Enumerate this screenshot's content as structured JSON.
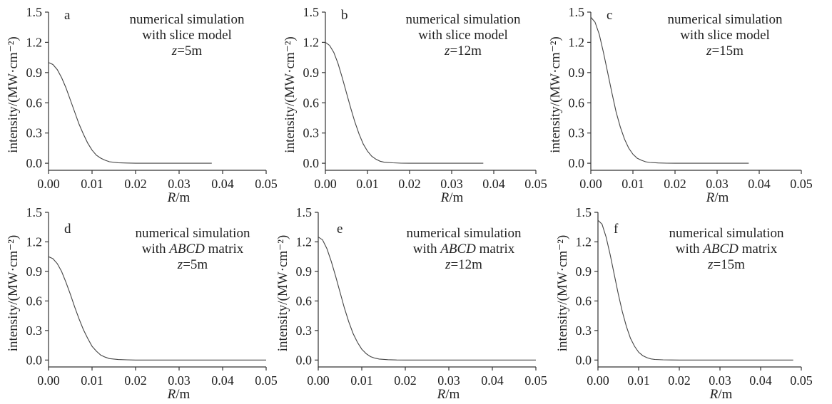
{
  "chart_data": [
    {
      "panel": "a",
      "type": "line",
      "annotation": [
        "numerical simulation",
        "with slice model",
        "z=5m"
      ],
      "xlabel": "R/m",
      "ylabel": "intensity/(MW·cm⁻²)",
      "xlim": [
        0,
        0.05
      ],
      "ylim": [
        -0.07,
        1.5
      ],
      "xticks": [
        "0.00",
        "0.01",
        "0.02",
        "0.03",
        "0.04",
        "0.05"
      ],
      "yticks": [
        "0.0",
        "0.3",
        "0.6",
        "0.9",
        "1.2",
        "1.5"
      ],
      "series": [
        {
          "x": [
            0,
            0.001,
            0.002,
            0.003,
            0.004,
            0.005,
            0.006,
            0.007,
            0.008,
            0.009,
            0.01,
            0.011,
            0.012,
            0.013,
            0.014,
            0.016,
            0.018,
            0.02,
            0.025,
            0.03,
            0.0375
          ],
          "y": [
            1.0,
            0.98,
            0.93,
            0.85,
            0.75,
            0.63,
            0.51,
            0.39,
            0.29,
            0.2,
            0.13,
            0.08,
            0.05,
            0.03,
            0.015,
            0.005,
            0.002,
            0.0,
            0.0,
            0.0,
            0.0
          ]
        }
      ]
    },
    {
      "panel": "b",
      "type": "line",
      "annotation": [
        "numerical simulation",
        "with slice model",
        "z=12m"
      ],
      "xlabel": "R/m",
      "ylabel": "intensity/(MW·cm⁻²)",
      "xlim": [
        0,
        0.05
      ],
      "ylim": [
        -0.07,
        1.5
      ],
      "xticks": [
        "0.00",
        "0.01",
        "0.02",
        "0.03",
        "0.04",
        "0.05"
      ],
      "yticks": [
        "0.0",
        "0.3",
        "0.6",
        "0.9",
        "1.2",
        "1.5"
      ],
      "series": [
        {
          "x": [
            0,
            0.001,
            0.002,
            0.003,
            0.004,
            0.005,
            0.006,
            0.007,
            0.008,
            0.009,
            0.01,
            0.011,
            0.012,
            0.013,
            0.014,
            0.016,
            0.018,
            0.02,
            0.025,
            0.03,
            0.0375
          ],
          "y": [
            1.2,
            1.17,
            1.1,
            0.99,
            0.85,
            0.7,
            0.55,
            0.41,
            0.29,
            0.19,
            0.12,
            0.07,
            0.04,
            0.02,
            0.01,
            0.004,
            0.001,
            0.0,
            0.0,
            0.0,
            0.0
          ]
        }
      ]
    },
    {
      "panel": "c",
      "type": "line",
      "annotation": [
        "numerical simulation",
        "with slice model",
        "z=15m"
      ],
      "xlabel": "R/m",
      "ylabel": "intensity/(MW·cm⁻²)",
      "xlim": [
        0,
        0.05
      ],
      "ylim": [
        -0.07,
        1.5
      ],
      "xticks": [
        "0.00",
        "0.01",
        "0.02",
        "0.03",
        "0.04",
        "0.05"
      ],
      "yticks": [
        "0.0",
        "0.3",
        "0.6",
        "0.9",
        "1.2",
        "1.5"
      ],
      "series": [
        {
          "x": [
            0,
            0.001,
            0.002,
            0.003,
            0.004,
            0.005,
            0.006,
            0.007,
            0.008,
            0.009,
            0.01,
            0.011,
            0.012,
            0.013,
            0.014,
            0.016,
            0.018,
            0.02,
            0.025,
            0.03,
            0.0375
          ],
          "y": [
            1.45,
            1.4,
            1.28,
            1.1,
            0.9,
            0.7,
            0.51,
            0.36,
            0.24,
            0.15,
            0.09,
            0.05,
            0.03,
            0.015,
            0.008,
            0.003,
            0.001,
            0.0,
            0.0,
            0.0,
            0.0
          ]
        }
      ]
    },
    {
      "panel": "d",
      "type": "line",
      "annotation": [
        "numerical simulation",
        "with ABCD matrix",
        "z=5m"
      ],
      "xlabel": "R/m",
      "ylabel": "intensity/(MW·cm⁻²)",
      "xlim": [
        0,
        0.05
      ],
      "ylim": [
        -0.07,
        1.5
      ],
      "xticks": [
        "0.00",
        "0.01",
        "0.02",
        "0.03",
        "0.04",
        "0.05"
      ],
      "yticks": [
        "0.0",
        "0.3",
        "0.6",
        "0.9",
        "1.2",
        "1.5"
      ],
      "series": [
        {
          "x": [
            0,
            0.001,
            0.002,
            0.003,
            0.004,
            0.005,
            0.006,
            0.007,
            0.008,
            0.009,
            0.01,
            0.011,
            0.012,
            0.013,
            0.014,
            0.016,
            0.018,
            0.02,
            0.025,
            0.03,
            0.04,
            0.05
          ],
          "y": [
            1.05,
            1.03,
            0.98,
            0.9,
            0.79,
            0.67,
            0.54,
            0.42,
            0.31,
            0.22,
            0.14,
            0.09,
            0.05,
            0.03,
            0.015,
            0.005,
            0.002,
            0.0,
            0.0,
            0.0,
            0.0,
            0.0
          ]
        }
      ]
    },
    {
      "panel": "e",
      "type": "line",
      "annotation": [
        "numerical simulation",
        "with ABCD matrix",
        "z=12m"
      ],
      "xlabel": "R/m",
      "ylabel": "intensity/(MW·cm⁻²)",
      "xlim": [
        0,
        0.05
      ],
      "ylim": [
        -0.07,
        1.5
      ],
      "xticks": [
        "0.00",
        "0.01",
        "0.02",
        "0.03",
        "0.04",
        "0.05"
      ],
      "yticks": [
        "0.0",
        "0.3",
        "0.6",
        "0.9",
        "1.2",
        "1.5"
      ],
      "series": [
        {
          "x": [
            0,
            0.001,
            0.002,
            0.003,
            0.004,
            0.005,
            0.006,
            0.007,
            0.008,
            0.009,
            0.01,
            0.011,
            0.012,
            0.013,
            0.014,
            0.016,
            0.018,
            0.02,
            0.025,
            0.03,
            0.04,
            0.05
          ],
          "y": [
            1.25,
            1.22,
            1.13,
            1.0,
            0.85,
            0.69,
            0.53,
            0.39,
            0.27,
            0.18,
            0.11,
            0.065,
            0.035,
            0.02,
            0.01,
            0.004,
            0.001,
            0.0,
            0.0,
            0.0,
            0.0,
            0.0
          ]
        }
      ]
    },
    {
      "panel": "f",
      "type": "line",
      "annotation": [
        "numerical simulation",
        "with ABCD matrix",
        "z=15m"
      ],
      "xlabel": "R/m",
      "ylabel": "intensity/(MW·cm⁻²)",
      "xlim": [
        0,
        0.05
      ],
      "ylim": [
        -0.07,
        1.5
      ],
      "xticks": [
        "0.00",
        "0.01",
        "0.02",
        "0.03",
        "0.04",
        "0.05"
      ],
      "yticks": [
        "0.0",
        "0.3",
        "0.6",
        "0.9",
        "1.2",
        "1.5"
      ],
      "series": [
        {
          "x": [
            0,
            0.001,
            0.002,
            0.003,
            0.004,
            0.005,
            0.006,
            0.007,
            0.008,
            0.009,
            0.01,
            0.011,
            0.012,
            0.013,
            0.014,
            0.016,
            0.018,
            0.02,
            0.025,
            0.03,
            0.04,
            0.048
          ],
          "y": [
            1.42,
            1.38,
            1.25,
            1.07,
            0.87,
            0.67,
            0.49,
            0.34,
            0.22,
            0.14,
            0.08,
            0.045,
            0.025,
            0.012,
            0.006,
            0.002,
            0.001,
            0.0,
            0.0,
            0.0,
            0.0,
            0.0
          ]
        }
      ]
    }
  ]
}
